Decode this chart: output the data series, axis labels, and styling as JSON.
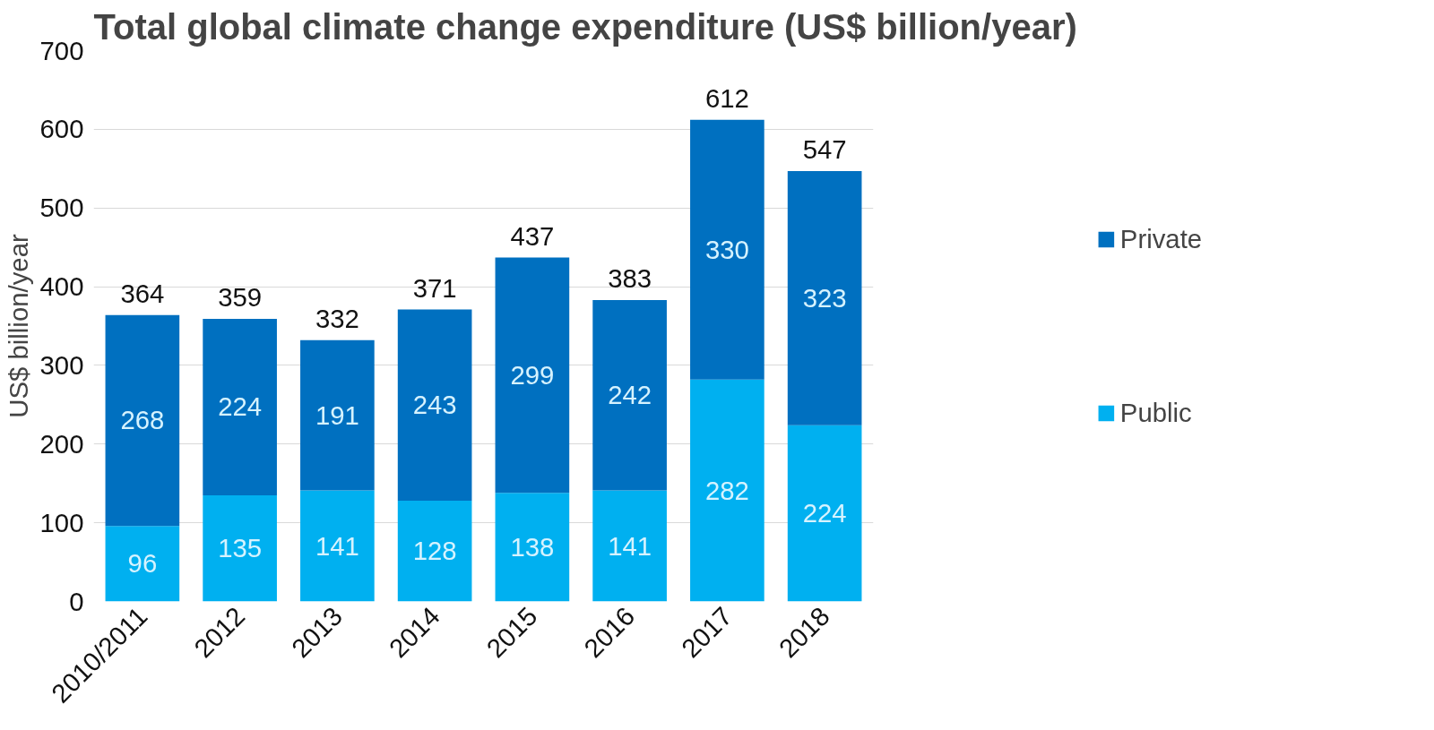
{
  "chart_data": {
    "type": "bar",
    "title": "Total global climate change expenditure (US$ billion/year)",
    "ylabel": "US$ billion/year",
    "categories": [
      "2010/2011",
      "2012",
      "2013",
      "2014",
      "2015",
      "2016",
      "2017",
      "2018"
    ],
    "stacked": true,
    "series": [
      {
        "name": "Public",
        "color": "#00b0f0",
        "values": [
          96,
          135,
          141,
          128,
          138,
          141,
          282,
          224
        ]
      },
      {
        "name": "Private",
        "color": "#0070c0",
        "values": [
          268,
          224,
          191,
          243,
          299,
          242,
          330,
          323
        ]
      }
    ],
    "totals": [
      "364",
      "359",
      "332",
      "371",
      "437",
      "383",
      "612",
      "547"
    ],
    "data_labels": true,
    "ylim": [
      0,
      700
    ],
    "yticks": [
      0,
      100,
      200,
      300,
      400,
      500,
      600,
      700
    ],
    "grid": "y",
    "legend": "right"
  }
}
